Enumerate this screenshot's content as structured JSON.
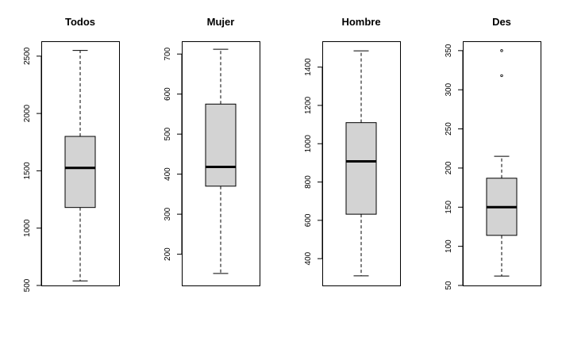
{
  "chart_data": [
    {
      "type": "boxplot",
      "title": "Todos",
      "ylim": [
        500,
        2630
      ],
      "yticks": [
        500,
        1000,
        1500,
        2000,
        2500
      ],
      "box": {
        "whisker_low": 540,
        "q1": 1180,
        "median": 1525,
        "q3": 1800,
        "whisker_high": 2550
      },
      "outliers": []
    },
    {
      "type": "boxplot",
      "title": "Mujer",
      "ylim": [
        122,
        732
      ],
      "yticks": [
        200,
        300,
        400,
        500,
        600,
        700
      ],
      "box": {
        "whisker_low": 152,
        "q1": 370,
        "median": 418,
        "q3": 575,
        "whisker_high": 712
      },
      "outliers": []
    },
    {
      "type": "boxplot",
      "title": "Hombre",
      "ylim": [
        260,
        1535
      ],
      "yticks": [
        400,
        600,
        800,
        1000,
        1200,
        1400
      ],
      "box": {
        "whisker_low": 310,
        "q1": 632,
        "median": 908,
        "q3": 1110,
        "whisker_high": 1485
      },
      "outliers": []
    },
    {
      "type": "boxplot",
      "title": "Des",
      "ylim": [
        50,
        362
      ],
      "yticks": [
        50,
        100,
        150,
        200,
        250,
        300,
        350
      ],
      "box": {
        "whisker_low": 62,
        "q1": 114,
        "median": 150,
        "q3": 187,
        "whisker_high": 215
      },
      "outliers": [
        318,
        350
      ]
    }
  ]
}
